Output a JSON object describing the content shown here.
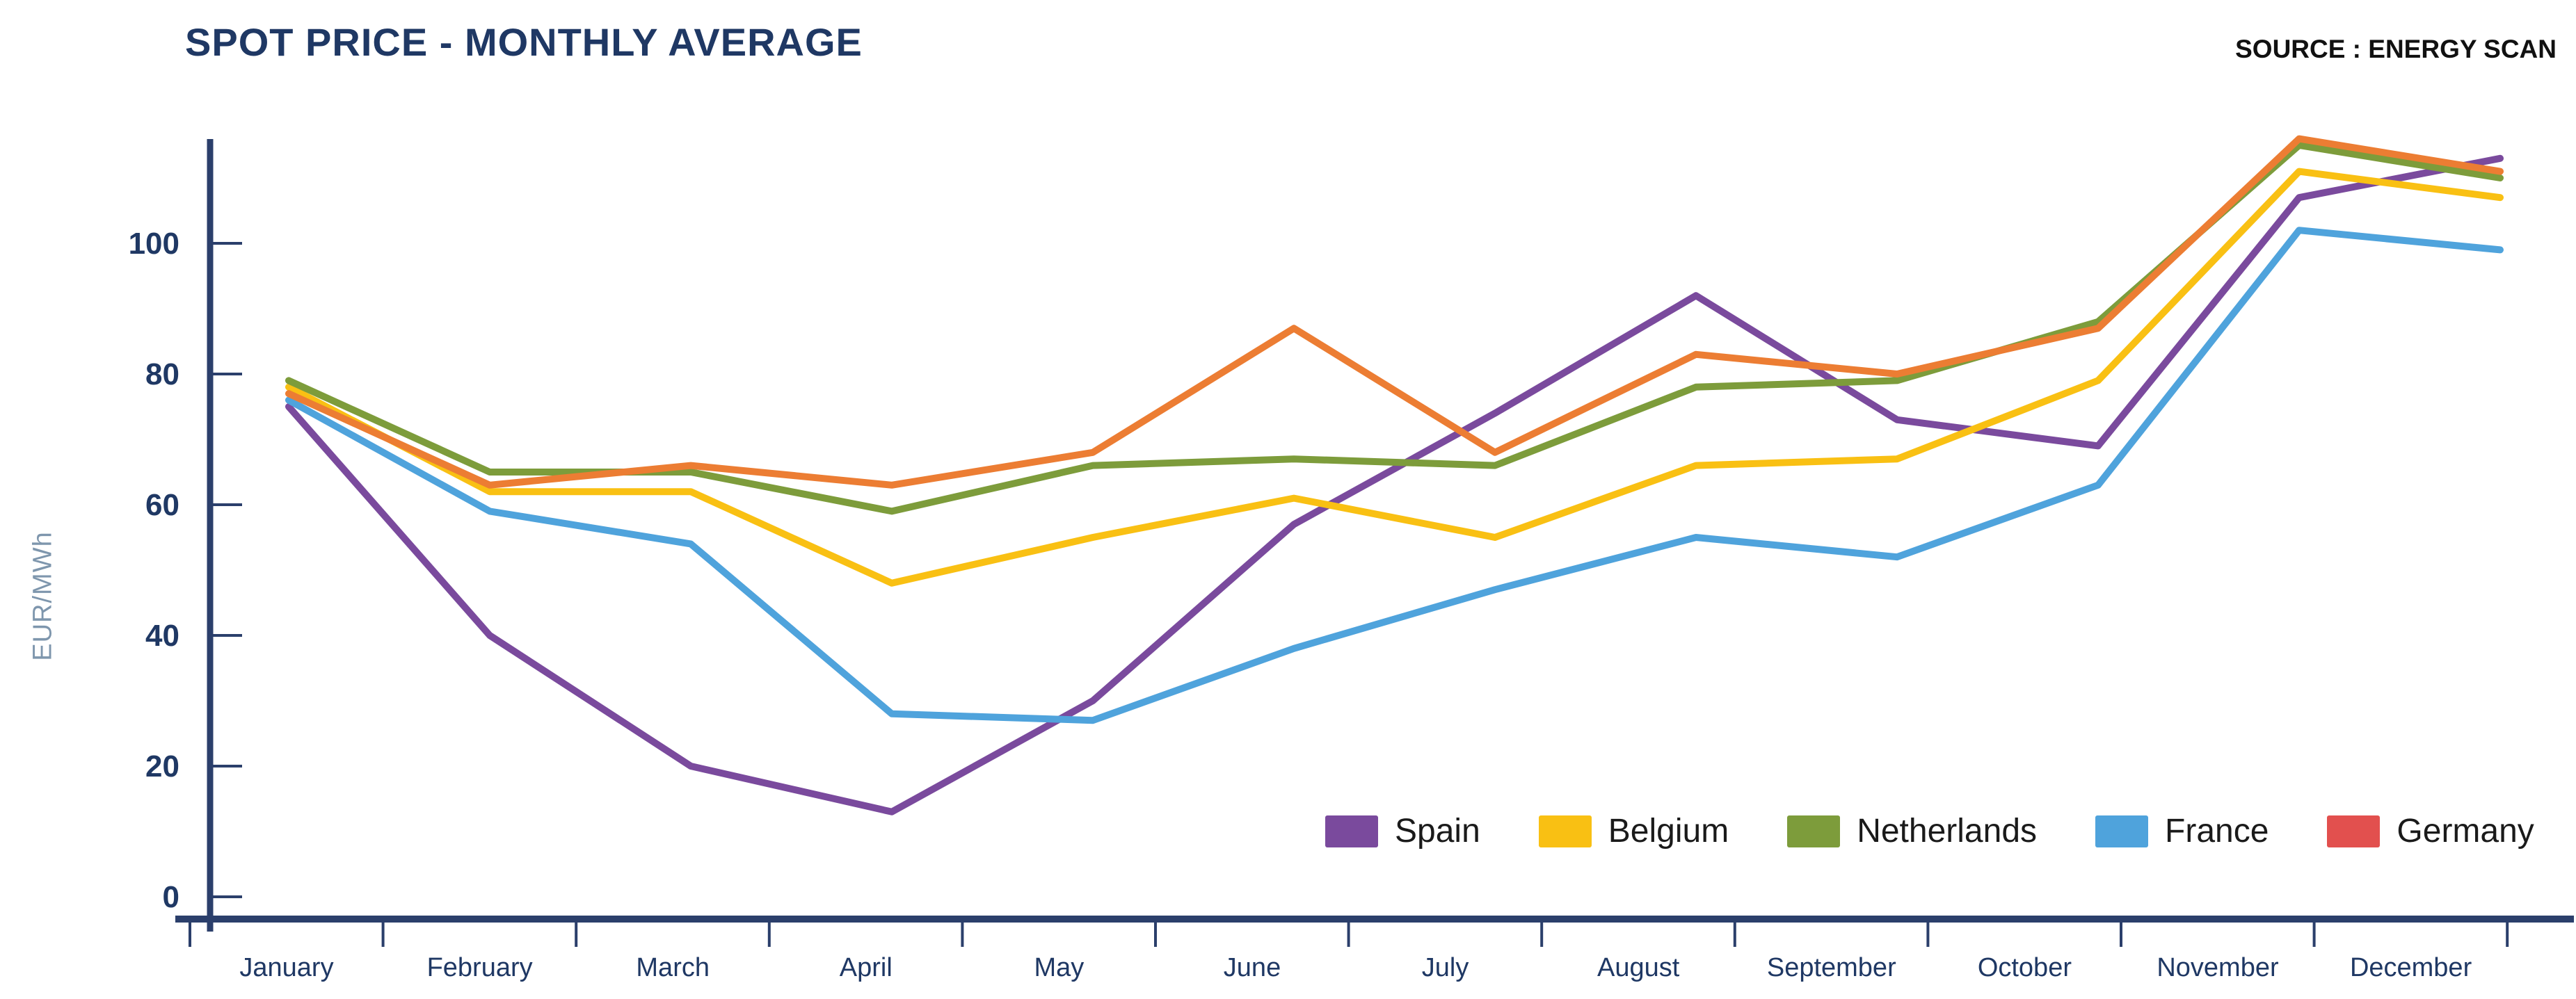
{
  "header": {
    "title": "SPOT PRICE - MONTHLY AVERAGE",
    "source": "SOURCE : ENERGY SCAN"
  },
  "chart_data": {
    "type": "line",
    "title": "SPOT PRICE - MONTHLY AVERAGE",
    "xlabel": "",
    "ylabel": "EUR/MWh",
    "categories": [
      "January",
      "February",
      "March",
      "April",
      "May",
      "June",
      "July",
      "August",
      "September",
      "October",
      "November",
      "December"
    ],
    "y_ticks": [
      0,
      20,
      40,
      60,
      80,
      100
    ],
    "ylim": [
      0,
      118
    ],
    "grid": "off",
    "legend_position": "bottom-right-inside",
    "series": [
      {
        "name": "Spain",
        "color": "#7A4A9D",
        "values": [
          75,
          40,
          20,
          13,
          30,
          57,
          74,
          92,
          73,
          69,
          107,
          113
        ]
      },
      {
        "name": "Belgium",
        "color": "#F9C013",
        "values": [
          78,
          62,
          62,
          48,
          55,
          61,
          55,
          66,
          67,
          79,
          111,
          107
        ]
      },
      {
        "name": "Netherlands",
        "color": "#7D9C3B",
        "values": [
          79,
          65,
          65,
          59,
          66,
          67,
          66,
          78,
          79,
          88,
          115,
          110
        ]
      },
      {
        "name": "France",
        "color": "#4FA3DC",
        "values": [
          76,
          59,
          54,
          28,
          27,
          38,
          47,
          55,
          52,
          63,
          102,
          99
        ]
      },
      {
        "name": "Germany",
        "color": "#EC7D33",
        "legend_color": "#E2504E",
        "values": [
          77,
          63,
          66,
          63,
          68,
          87,
          68,
          83,
          80,
          87,
          116,
          111
        ]
      }
    ]
  },
  "style": {
    "axis_color": "#2B3F6B",
    "tick_label_color": "#1F3864",
    "month_label_color": "#1F3864",
    "ylabel_color": "#7E96AD",
    "title_color": "#1F3864",
    "source_color": "#111111"
  }
}
